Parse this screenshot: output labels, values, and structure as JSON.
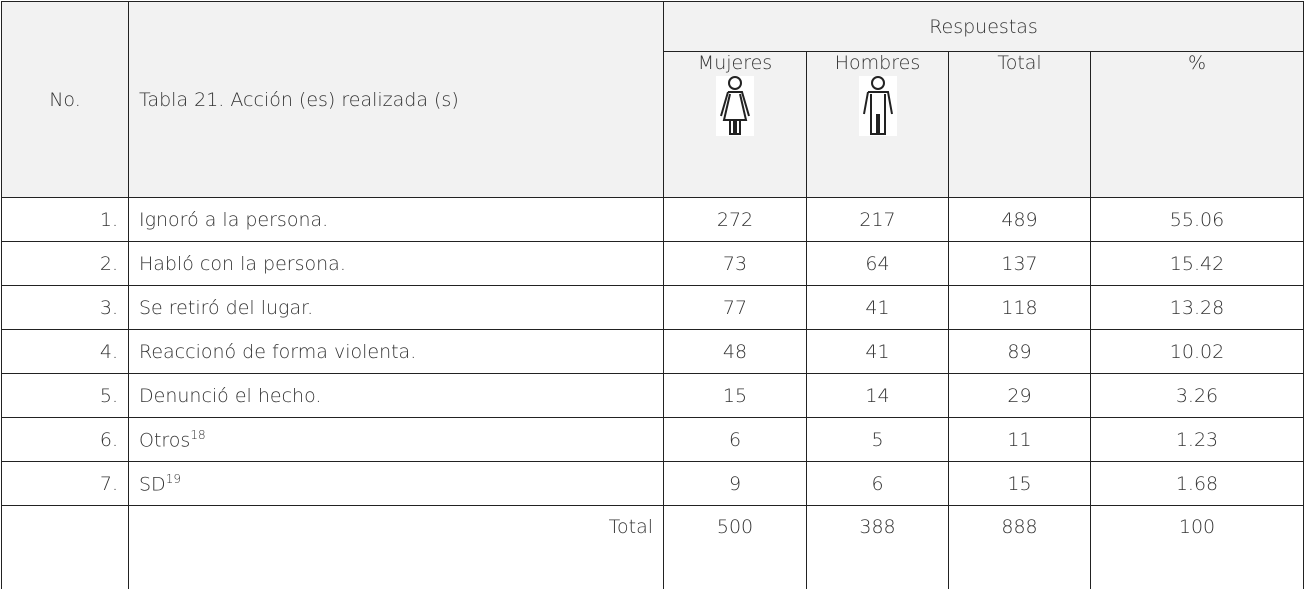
{
  "table": {
    "group_header": "Respuestas",
    "headers": [
      "No.",
      "Tabla 21. Acción (es) realizada (s)",
      "Mujeres",
      "Hombres",
      "Total",
      "%"
    ],
    "rows": [
      [
        "1.",
        "Ignoró a la persona.",
        272,
        217,
        489,
        55.06
      ],
      [
        "2.",
        "Habló con la persona.",
        73,
        64,
        137,
        15.42
      ],
      [
        "3.",
        "Se retiró del lugar.",
        77,
        41,
        118,
        13.28
      ],
      [
        "4.",
        "Reaccionó de forma violenta.",
        48,
        41,
        89,
        10.02
      ],
      [
        "5.",
        "Denunció el hecho.",
        15,
        14,
        29,
        3.26
      ],
      [
        "6.",
        {
          "text": "Otros",
          "note": "18"
        },
        6,
        5,
        11,
        1.23
      ],
      [
        "7.",
        {
          "text": "SD",
          "note": "19"
        },
        9,
        6,
        15,
        1.68
      ]
    ],
    "total_row": [
      "Total",
      500,
      388,
      888,
      100
    ]
  }
}
